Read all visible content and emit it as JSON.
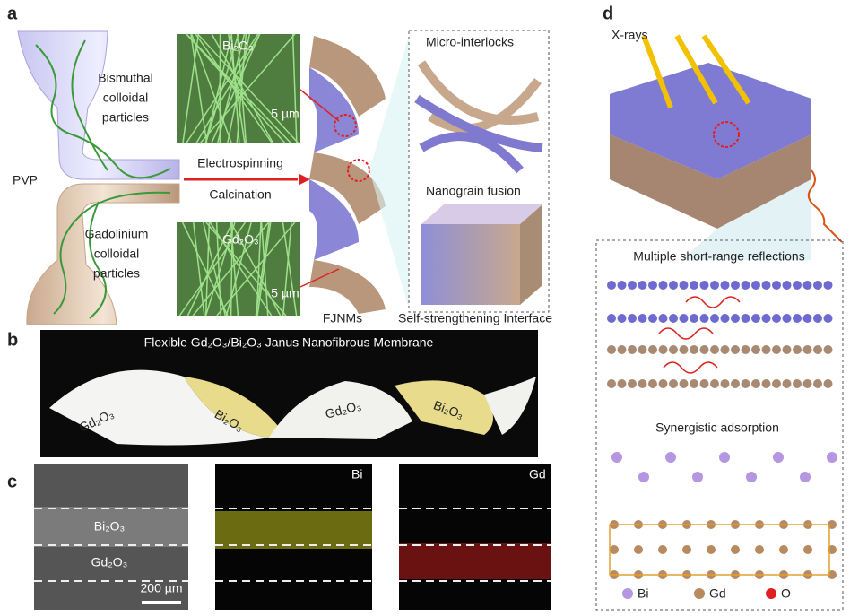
{
  "panel_a": {
    "label": "a",
    "bismuth_lines": [
      "Bismuthal",
      "colloidal",
      "particles"
    ],
    "pvp": "PVP",
    "gadolinium_lines": [
      "Gadolinium",
      "colloidal",
      "particles"
    ],
    "process_top": "Electrospinning",
    "process_bottom": "Calcination",
    "sem_top_label": "Bi₂O₃",
    "sem_top_scale": "5 µm",
    "sem_bottom_label": "Gd₂O₃",
    "sem_bottom_scale": "5 µm",
    "fjnms": "FJNMs",
    "interlocks": "Micro-interlocks",
    "fusion": "Nanograin fusion",
    "interface": "Self-strengthening Interface"
  },
  "panel_b": {
    "label": "b",
    "title": "Flexible Gd₂O₃/Bi₂O₃ Janus Nanofibrous Membrane",
    "ribbon_labels": [
      "Gd₂O₃",
      "Bi₂O₃",
      "Gd₂O₃",
      "Bi₂O₃"
    ]
  },
  "panel_c": {
    "label": "c",
    "sem_layers": [
      "Bi₂O₃",
      "Gd₂O₃"
    ],
    "scale": "200 µm",
    "map_bi": "Bi",
    "map_gd": "Gd"
  },
  "panel_d": {
    "label": "d",
    "xrays": "X-rays",
    "reflections": "Multiple short-range reflections",
    "adsorption": "Synergistic adsorption",
    "legend": [
      "Bi",
      "Gd",
      "O"
    ]
  }
}
